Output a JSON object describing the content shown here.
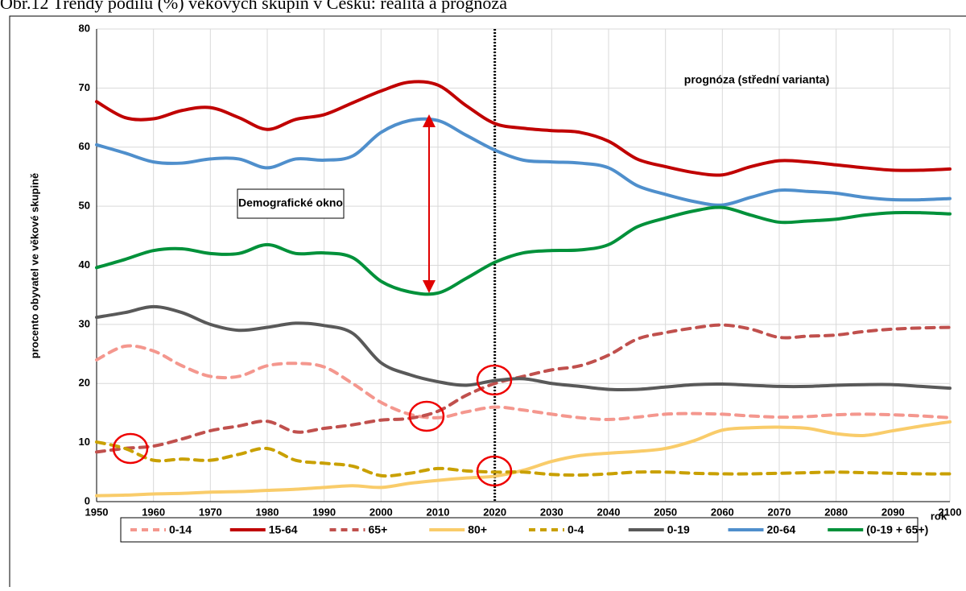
{
  "chart_data": {
    "type": "line",
    "title": "Obr.12 Trendy podílu (%) věkových skupin v Česku: realita a prognóza",
    "y_label": "procento obyvatel ve věkové skupině",
    "x_label": "rok",
    "annotations": [
      "Demografické okno",
      "prognóza (střední varianta)"
    ],
    "vline": 2020,
    "x": [
      1950,
      1955,
      1960,
      1965,
      1970,
      1975,
      1980,
      1985,
      1990,
      1995,
      2000,
      2005,
      2010,
      2015,
      2020,
      2025,
      2030,
      2035,
      2040,
      2045,
      2050,
      2055,
      2060,
      2065,
      2070,
      2075,
      2080,
      2085,
      2090,
      2095,
      2100
    ],
    "xlim": [
      1950,
      2100
    ],
    "xticks": [
      1950,
      1960,
      1970,
      1980,
      1990,
      2000,
      2010,
      2020,
      2030,
      2040,
      2050,
      2060,
      2070,
      2080,
      2090,
      2100
    ],
    "ylim": [
      0,
      80
    ],
    "yticks": [
      0,
      10,
      20,
      30,
      40,
      50,
      60,
      70,
      80
    ],
    "grid": true,
    "series": [
      {
        "name": "0-14",
        "color": "#f4978e",
        "dashed": true,
        "values": [
          24,
          26.3,
          25.5,
          23,
          21.2,
          21.2,
          23,
          23.4,
          22.8,
          20,
          16.8,
          14.8,
          14.2,
          15.2,
          16,
          15.5,
          14.8,
          14.2,
          13.9,
          14.3,
          14.8,
          14.9,
          14.8,
          14.5,
          14.3,
          14.4,
          14.7,
          14.8,
          14.7,
          14.5,
          14.2
        ]
      },
      {
        "name": "15-64",
        "color": "#c00000",
        "dashed": false,
        "values": [
          67.7,
          65,
          64.8,
          66.2,
          66.7,
          65,
          63,
          64.7,
          65.5,
          67.5,
          69.5,
          71,
          70.5,
          67,
          64,
          63.2,
          62.8,
          62.5,
          61,
          58,
          56.7,
          55.7,
          55.3,
          56.7,
          57.7,
          57.5,
          57,
          56.5,
          56.1,
          56.1,
          56.3
        ]
      },
      {
        "name": "65+",
        "color": "#c0504d",
        "dashed": true,
        "values": [
          8.4,
          9,
          9.4,
          10.6,
          12,
          12.8,
          13.6,
          11.8,
          12.4,
          13,
          13.8,
          14.1,
          15.3,
          18,
          20,
          21.2,
          22.3,
          23,
          24.8,
          27.5,
          28.6,
          29.4,
          29.9,
          29.2,
          27.8,
          28,
          28.2,
          28.8,
          29.2,
          29.4,
          29.5
        ]
      },
      {
        "name": "80+",
        "color": "#f9cc6a",
        "dashed": false,
        "values": [
          1,
          1.1,
          1.3,
          1.4,
          1.6,
          1.7,
          1.9,
          2.1,
          2.4,
          2.7,
          2.4,
          3.1,
          3.6,
          4,
          4.3,
          5.3,
          6.8,
          7.8,
          8.2,
          8.5,
          9,
          10.3,
          12.1,
          12.5,
          12.6,
          12.4,
          11.5,
          11.2,
          12,
          12.8,
          13.5
        ]
      },
      {
        "name": "0-4",
        "color": "#c9a000",
        "dashed": true,
        "values": [
          10.1,
          9,
          7,
          7.2,
          7,
          8,
          9,
          7,
          6.5,
          6,
          4.4,
          4.8,
          5.6,
          5.2,
          5,
          5,
          4.6,
          4.5,
          4.7,
          5,
          5,
          4.8,
          4.7,
          4.7,
          4.8,
          4.9,
          5,
          4.9,
          4.8,
          4.7,
          4.7
        ]
      },
      {
        "name": "0-19",
        "color": "#595959",
        "dashed": false,
        "values": [
          31.2,
          32,
          33,
          32,
          30,
          29,
          29.5,
          30.2,
          29.8,
          28.5,
          23.5,
          21.5,
          20.3,
          19.7,
          20.5,
          20.8,
          20,
          19.5,
          19,
          19,
          19.4,
          19.8,
          19.9,
          19.7,
          19.5,
          19.5,
          19.7,
          19.8,
          19.8,
          19.5,
          19.2
        ]
      },
      {
        "name": "20-64",
        "color": "#4f8fcc",
        "dashed": false,
        "values": [
          60.4,
          59,
          57.5,
          57.3,
          58,
          58,
          56.5,
          58,
          57.8,
          58.5,
          62.5,
          64.5,
          64.5,
          62,
          59.5,
          57.8,
          57.5,
          57.3,
          56.5,
          53.5,
          52,
          50.8,
          50.2,
          51.5,
          52.7,
          52.5,
          52.2,
          51.5,
          51.1,
          51.1,
          51.3
        ]
      },
      {
        "name": "(0-19 + 65+)",
        "color": "#00913a",
        "dashed": false,
        "values": [
          39.6,
          41,
          42.5,
          42.8,
          42,
          42,
          43.5,
          42,
          42.1,
          41.3,
          37.3,
          35.5,
          35.3,
          37.8,
          40.5,
          42.1,
          42.5,
          42.6,
          43.5,
          46.5,
          48,
          49.2,
          49.8,
          48.5,
          47.3,
          47.5,
          47.8,
          48.5,
          48.9,
          48.9,
          48.7
        ]
      }
    ]
  }
}
